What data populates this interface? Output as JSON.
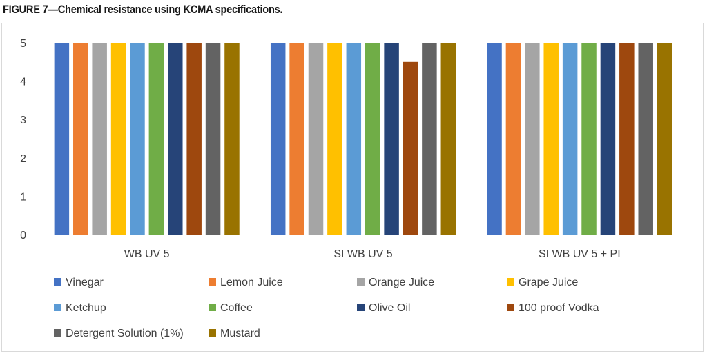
{
  "figure": {
    "title": "FIGURE 7—Chemical resistance using KCMA specifications."
  },
  "chart_data": {
    "type": "bar",
    "title": "",
    "xlabel": "",
    "ylabel": "",
    "ylim": [
      0,
      5
    ],
    "yticks": [
      0,
      1,
      2,
      3,
      4,
      5
    ],
    "grid": false,
    "legend_position": "bottom",
    "categories": [
      "WB UV 5",
      "SI WB UV 5",
      "SI WB UV 5 + PI"
    ],
    "series": [
      {
        "name": "Vinegar",
        "color": "#4472C4",
        "values": [
          5,
          5,
          5
        ]
      },
      {
        "name": "Lemon Juice",
        "color": "#ED7D31",
        "values": [
          5,
          5,
          5
        ]
      },
      {
        "name": "Orange Juice",
        "color": "#A5A5A5",
        "values": [
          5,
          5,
          5
        ]
      },
      {
        "name": "Grape Juice",
        "color": "#FFC000",
        "values": [
          5,
          5,
          5
        ]
      },
      {
        "name": "Ketchup",
        "color": "#5B9BD5",
        "values": [
          5,
          5,
          5
        ]
      },
      {
        "name": "Coffee",
        "color": "#70AD47",
        "values": [
          5,
          5,
          5
        ]
      },
      {
        "name": "Olive Oil",
        "color": "#264478",
        "values": [
          5,
          5,
          5
        ]
      },
      {
        "name": "100 proof Vodka",
        "color": "#9E480E",
        "values": [
          5,
          4.5,
          5
        ]
      },
      {
        "name": "Detergent Solution (1%)",
        "color": "#636363",
        "values": [
          5,
          5,
          5
        ]
      },
      {
        "name": "Mustard",
        "color": "#997300",
        "values": [
          5,
          5,
          5
        ]
      }
    ]
  }
}
